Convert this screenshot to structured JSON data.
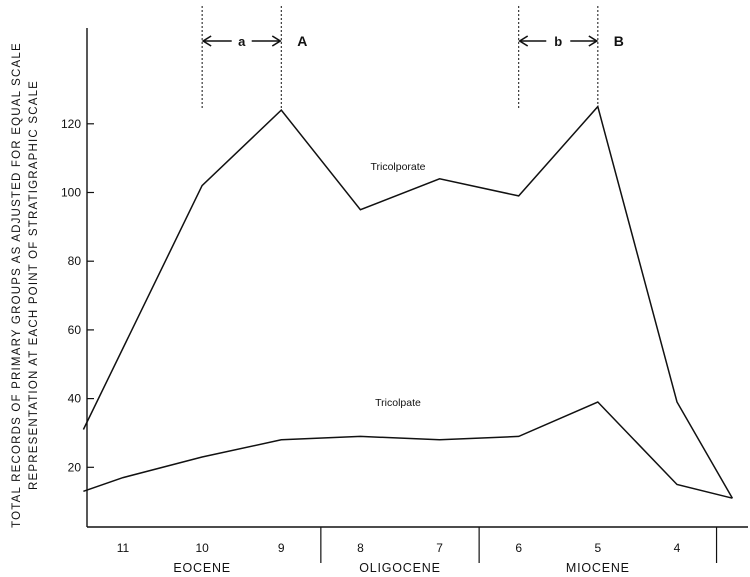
{
  "chart_data": {
    "type": "line",
    "ylabel_line1": "TOTAL RECORDS OF PRIMARY GROUPS AS ADJUSTED FOR EQUAL SCALE",
    "ylabel_line2": "REPRESENTATION AT EACH POINT OF STRATIGRAPHIC SCALE",
    "ylim": [
      10,
      128
    ],
    "yticks": [
      20,
      40,
      60,
      80,
      100,
      120
    ],
    "x_ticks": [
      "11",
      "10",
      "9",
      "8",
      "7",
      "6",
      "5",
      "4"
    ],
    "epochs": [
      {
        "label": "EOCENE",
        "span": [
          "11",
          "9"
        ]
      },
      {
        "label": "OLIGOCENE",
        "span": [
          "8",
          "7"
        ]
      },
      {
        "label": "MIOCENE",
        "span": [
          "6",
          "4"
        ]
      }
    ],
    "series": [
      {
        "name": "Tricolporate",
        "x": [
          11.5,
          10,
          9,
          8,
          7,
          6,
          5,
          4,
          3.3
        ],
        "y": [
          31,
          102,
          124,
          95,
          104,
          99,
          125,
          39,
          11
        ]
      },
      {
        "name": "Tricolpate",
        "x": [
          11.5,
          11,
          10,
          9,
          8,
          7,
          6,
          5,
          4,
          3.3
        ],
        "y": [
          13,
          17,
          23,
          28,
          29,
          28,
          29,
          39,
          15,
          11
        ]
      }
    ],
    "markers": [
      {
        "label": "A",
        "x": 9
      },
      {
        "label": "B",
        "x": 5
      }
    ],
    "intervals": [
      {
        "label": "a",
        "from": 10,
        "to": 9
      },
      {
        "label": "b",
        "from": 6,
        "to": 5
      }
    ]
  }
}
